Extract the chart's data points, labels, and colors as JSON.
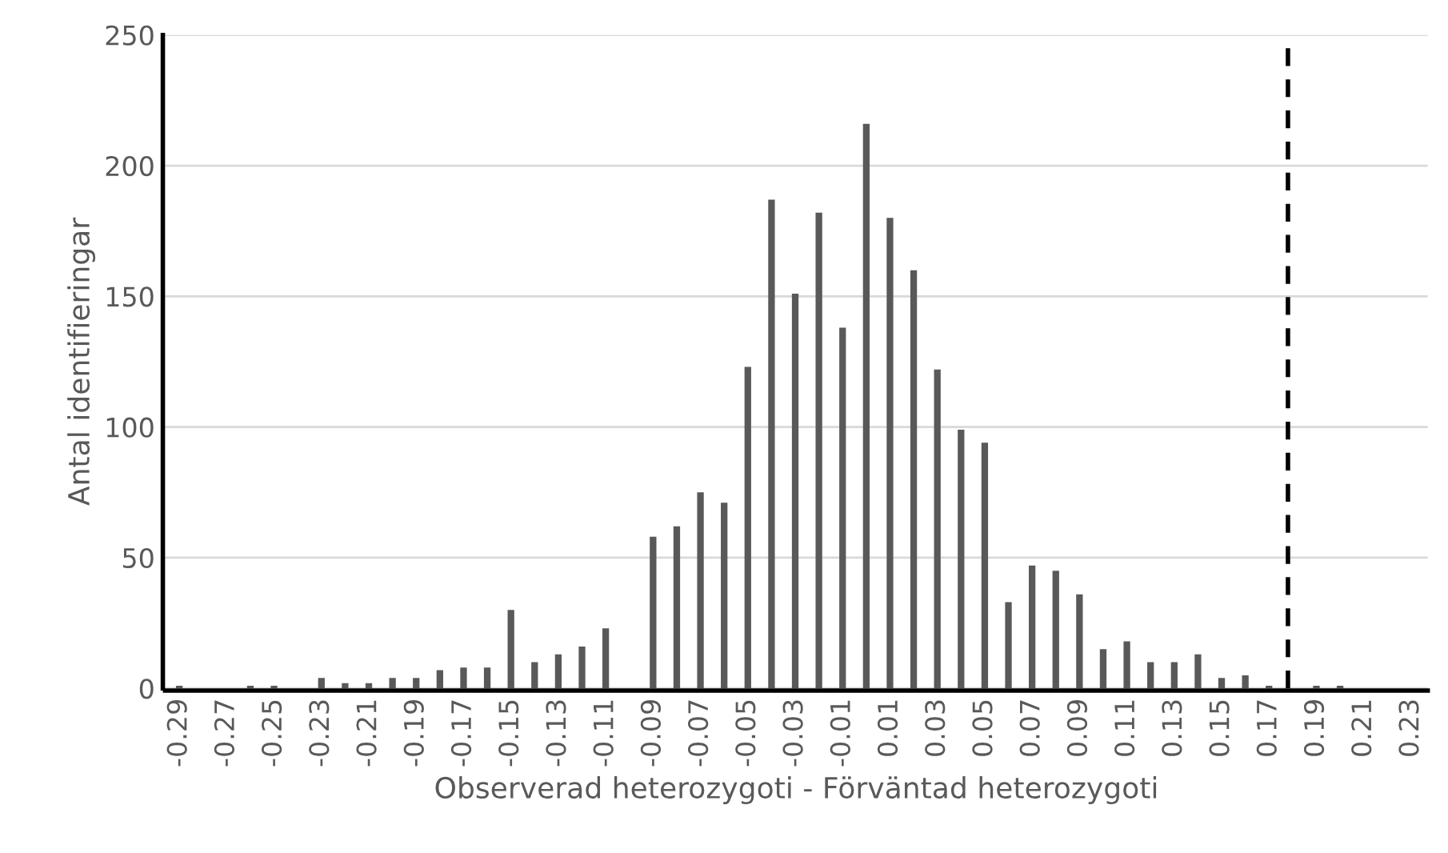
{
  "chart_data": {
    "type": "bar",
    "xlabel": "Observerad heterozygoti - Förväntad heterozygoti",
    "ylabel": "Antal identifieringar",
    "x": [
      -0.29,
      -0.28,
      -0.27,
      -0.26,
      -0.25,
      -0.24,
      -0.23,
      -0.22,
      -0.21,
      -0.2,
      -0.19,
      -0.18,
      -0.17,
      -0.16,
      -0.15,
      -0.14,
      -0.13,
      -0.12,
      -0.11,
      -0.1,
      -0.09,
      -0.08,
      -0.07,
      -0.06,
      -0.05,
      -0.04,
      -0.03,
      -0.02,
      -0.01,
      0.0,
      0.01,
      0.02,
      0.03,
      0.04,
      0.05,
      0.06,
      0.07,
      0.08,
      0.09,
      0.1,
      0.11,
      0.12,
      0.13,
      0.14,
      0.15,
      0.16,
      0.17,
      0.18,
      0.19,
      0.2,
      0.21,
      0.22,
      0.23
    ],
    "values": [
      1,
      0,
      0,
      1,
      1,
      0,
      4,
      2,
      2,
      4,
      4,
      7,
      8,
      8,
      30,
      10,
      13,
      16,
      23,
      0,
      58,
      62,
      75,
      71,
      123,
      187,
      151,
      182,
      138,
      216,
      180,
      160,
      122,
      99,
      94,
      33,
      47,
      45,
      36,
      15,
      18,
      10,
      10,
      13,
      4,
      5,
      1,
      0,
      1,
      1,
      0,
      0,
      0
    ],
    "color": "#595959",
    "xlim": [
      -0.296,
      0.237
    ],
    "xticks": [
      -0.29,
      -0.27,
      -0.25,
      -0.23,
      -0.21,
      -0.19,
      -0.17,
      -0.15,
      -0.13,
      -0.11,
      -0.09,
      -0.07,
      -0.05,
      -0.03,
      -0.01,
      0.01,
      0.03,
      0.05,
      0.07,
      0.09,
      0.11,
      0.13,
      0.15,
      0.17,
      0.19,
      0.21,
      0.23
    ],
    "ylim": [
      0,
      250
    ],
    "yticks": [
      0,
      50,
      100,
      150,
      200,
      250
    ],
    "grid": "y",
    "ref_lines": [
      {
        "axis": "x",
        "value": 0.178,
        "color": "#000000",
        "line_style": "dashed"
      }
    ],
    "legend": false
  }
}
